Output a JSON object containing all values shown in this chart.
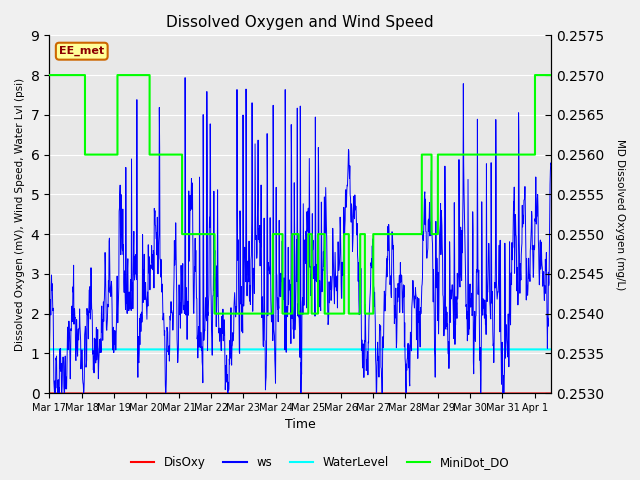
{
  "title": "Dissolved Oxygen and Wind Speed",
  "xlabel": "Time",
  "ylabel_left": "Dissolved Oxygen (mV), Wind Speed, Water Lvl (psi)",
  "ylabel_right": "MD Dissolved Oxygen (mg/L)",
  "ylim_left": [
    0.0,
    9.0
  ],
  "ylim_right": [
    0.253,
    0.2575
  ],
  "yticks_left": [
    0.0,
    1.0,
    2.0,
    3.0,
    4.0,
    5.0,
    6.0,
    7.0,
    8.0,
    9.0
  ],
  "yticks_right": [
    0.253,
    0.2535,
    0.254,
    0.2545,
    0.255,
    0.2555,
    0.256,
    0.2565,
    0.257,
    0.2575
  ],
  "xtick_labels": [
    "Mar 17",
    "Mar 18",
    "Mar 19",
    "Mar 20",
    "Mar 21",
    "Mar 22",
    "Mar 23",
    "Mar 24",
    "Mar 25",
    "Mar 26",
    "Mar 27",
    "Mar 28",
    "Mar 29",
    "Mar 30",
    "Mar 31",
    "Apr 1"
  ],
  "station_label": "EE_met",
  "background_color": "#f0f0f0",
  "plot_bg_color": "#e8e8e8",
  "grid_color": "white",
  "disoxy_color": "red",
  "ws_color": "blue",
  "waterlevel_color": "cyan",
  "minidot_color": "lime",
  "legend_labels": [
    "DisOxy",
    "ws",
    "WaterLevel",
    "MiniDot_DO"
  ],
  "disoxy_value": 0.0,
  "water_level_value": 1.1,
  "xlim": [
    0,
    15.5
  ],
  "minidot_steps": [
    [
      0.0,
      8.0
    ],
    [
      1.1,
      6.0
    ],
    [
      2.1,
      8.0
    ],
    [
      3.1,
      6.0
    ],
    [
      4.1,
      4.0
    ],
    [
      5.1,
      2.0
    ],
    [
      6.9,
      4.0
    ],
    [
      7.2,
      2.0
    ],
    [
      7.5,
      4.0
    ],
    [
      7.7,
      2.0
    ],
    [
      8.0,
      4.0
    ],
    [
      8.1,
      2.0
    ],
    [
      8.3,
      4.0
    ],
    [
      8.5,
      2.0
    ],
    [
      9.1,
      4.0
    ],
    [
      9.25,
      2.0
    ],
    [
      9.6,
      4.0
    ],
    [
      9.75,
      2.0
    ],
    [
      10.0,
      4.0
    ],
    [
      11.5,
      6.0
    ],
    [
      11.8,
      4.0
    ],
    [
      12.0,
      6.0
    ],
    [
      15.0,
      8.0
    ]
  ]
}
